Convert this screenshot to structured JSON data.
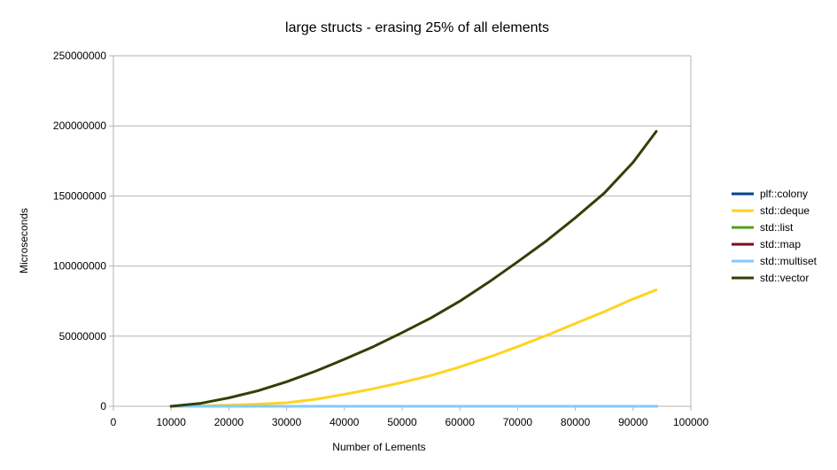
{
  "chart_data": {
    "type": "line",
    "title": "large structs - erasing 25% of all elements",
    "xlabel": "Number of Lements",
    "ylabel": "Microseconds",
    "xlim": [
      0,
      100000
    ],
    "ylim": [
      0,
      250000000
    ],
    "x_ticks": [
      "0",
      "10000",
      "20000",
      "30000",
      "40000",
      "50000",
      "60000",
      "70000",
      "80000",
      "90000",
      "100000"
    ],
    "y_ticks": [
      "0",
      "50000000",
      "100000000",
      "150000000",
      "200000000",
      "250000000"
    ],
    "grid": "horizontal",
    "legend": "right",
    "series": [
      {
        "name": "plf::colony",
        "color": "#004586",
        "x": [
          10000,
          20000,
          30000,
          40000,
          50000,
          60000,
          70000,
          80000,
          94000
        ],
        "y": [
          0,
          0,
          0,
          0,
          0,
          0,
          0,
          0,
          0
        ]
      },
      {
        "name": "std::deque",
        "color": "#ffd320",
        "x": [
          10000,
          15000,
          20000,
          25000,
          30000,
          35000,
          40000,
          45000,
          50000,
          55000,
          60000,
          65000,
          70000,
          75000,
          80000,
          85000,
          90000,
          94000
        ],
        "y": [
          0,
          300000,
          800000,
          1500000,
          2500000,
          5000000,
          8500000,
          12500000,
          17000000,
          22000000,
          28000000,
          35000000,
          42500000,
          50500000,
          59000000,
          67500000,
          76500000,
          83000000
        ]
      },
      {
        "name": "std::list",
        "color": "#579d1c",
        "x": [
          10000,
          20000,
          30000,
          40000,
          50000,
          60000,
          70000,
          80000,
          94000
        ],
        "y": [
          0,
          0,
          0,
          0,
          0,
          0,
          0,
          0,
          0
        ]
      },
      {
        "name": "std::map",
        "color": "#7e0021",
        "x": [
          10000,
          20000,
          30000,
          40000,
          50000,
          60000,
          70000,
          80000,
          94000
        ],
        "y": [
          0,
          0,
          0,
          0,
          0,
          0,
          0,
          0,
          0
        ]
      },
      {
        "name": "std::multiset",
        "color": "#83caff",
        "x": [
          10000,
          20000,
          30000,
          40000,
          50000,
          60000,
          70000,
          80000,
          94000
        ],
        "y": [
          0,
          0,
          0,
          0,
          0,
          0,
          0,
          0,
          0
        ]
      },
      {
        "name": "std::vector",
        "color": "#314004",
        "x": [
          10000,
          15000,
          20000,
          25000,
          30000,
          35000,
          40000,
          45000,
          50000,
          55000,
          60000,
          65000,
          70000,
          75000,
          80000,
          85000,
          90000,
          94000
        ],
        "y": [
          0,
          2000000,
          6000000,
          11000000,
          17500000,
          25000000,
          33500000,
          42500000,
          52500000,
          63000000,
          75000000,
          88500000,
          103000000,
          118000000,
          134500000,
          152000000,
          174000000,
          196000000
        ]
      }
    ]
  }
}
